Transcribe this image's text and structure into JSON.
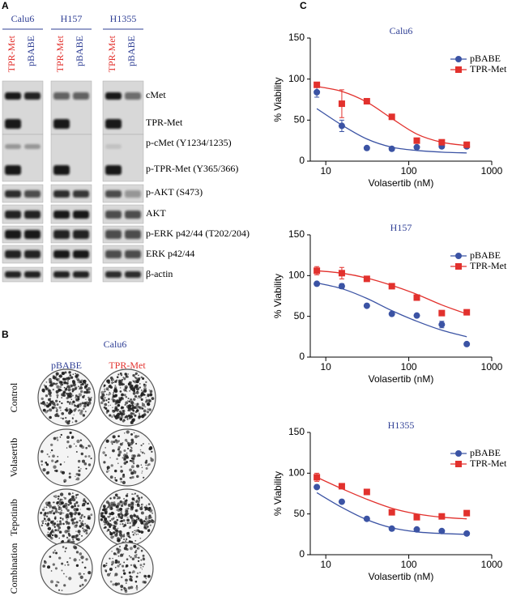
{
  "panels": {
    "a": "A",
    "b": "B",
    "c": "C"
  },
  "blot": {
    "cell_lines": [
      "Calu6",
      "H157",
      "H1355"
    ],
    "lanes": [
      "TPR-Met",
      "pBABE"
    ],
    "rows": [
      "cMet",
      "TPR-Met",
      "p-cMet (Y1234/1235)",
      "p-TPR-Met (Y365/366)",
      "p-AKT (S473)",
      "AKT",
      "p-ERK p42/44 (T202/204)",
      "ERK p42/44",
      "β-actin"
    ]
  },
  "colony": {
    "title": "Calu6",
    "columns": [
      "pBABE",
      "TPR-Met"
    ],
    "rows": [
      "Control",
      "Volasertib",
      "Tepotinib",
      "Combination"
    ]
  },
  "chart_data": [
    {
      "type": "line",
      "title": "Calu6",
      "xlabel": "Volasertib (nM)",
      "ylabel": "% Viability",
      "log_x": true,
      "xlim": [
        6.5,
        1000
      ],
      "xticks": [
        10,
        100,
        1000
      ],
      "ylim": [
        0,
        150
      ],
      "yticks": [
        0,
        50,
        100,
        150
      ],
      "legend": "upper right",
      "x": [
        7.8,
        15.6,
        31.25,
        62.5,
        125,
        250,
        500
      ],
      "series": [
        {
          "name": "pBABE",
          "color": "#3b53a4",
          "marker": "circle",
          "values": [
            84,
            43,
            16,
            15,
            17,
            18,
            18
          ],
          "error": [
            6,
            7,
            null,
            null,
            null,
            null,
            null
          ],
          "fit": [
            64,
            44,
            27,
            17,
            13,
            11,
            10
          ]
        },
        {
          "name": "TPR-Met",
          "color": "#e2312d",
          "marker": "square",
          "values": [
            93,
            70,
            73,
            54,
            25,
            23,
            20
          ],
          "error": [
            null,
            17,
            null,
            null,
            null,
            null,
            null
          ],
          "fit": [
            91,
            85,
            72,
            52,
            33,
            23,
            19
          ]
        }
      ]
    },
    {
      "type": "line",
      "title": "H157",
      "xlabel": "Volasertib (nM)",
      "ylabel": "% Viability",
      "log_x": true,
      "xlim": [
        6.5,
        1000
      ],
      "xticks": [
        10,
        100,
        1000
      ],
      "ylim": [
        0,
        150
      ],
      "yticks": [
        0,
        50,
        100,
        150
      ],
      "legend": "upper right",
      "x": [
        7.8,
        15.6,
        31.25,
        62.5,
        125,
        250,
        500
      ],
      "series": [
        {
          "name": "pBABE",
          "color": "#3b53a4",
          "marker": "circle",
          "values": [
            90,
            87,
            63,
            53,
            51,
            40,
            16
          ],
          "error": [
            null,
            3,
            null,
            null,
            null,
            4,
            null
          ],
          "fit": [
            91,
            84,
            72,
            57,
            44,
            33,
            25
          ]
        },
        {
          "name": "TPR-Met",
          "color": "#e2312d",
          "marker": "square",
          "values": [
            106,
            103,
            96,
            87,
            73,
            54,
            55
          ],
          "error": [
            5,
            7,
            null,
            null,
            null,
            null,
            null
          ],
          "fit": [
            106,
            103,
            97,
            88,
            77,
            64,
            53
          ]
        }
      ]
    },
    {
      "type": "line",
      "title": "H1355",
      "xlabel": "Volasertib (nM)",
      "ylabel": "% Viability",
      "log_x": true,
      "xlim": [
        6.5,
        1000
      ],
      "xticks": [
        10,
        100,
        1000
      ],
      "ylim": [
        0,
        150
      ],
      "yticks": [
        0,
        50,
        100,
        150
      ],
      "legend": "upper right",
      "x": [
        7.8,
        15.6,
        31.25,
        62.5,
        125,
        250,
        500
      ],
      "series": [
        {
          "name": "pBABE",
          "color": "#3b53a4",
          "marker": "circle",
          "values": [
            83,
            65,
            44,
            32,
            31,
            29,
            26
          ],
          "error": [
            null,
            null,
            null,
            null,
            null,
            null,
            null
          ],
          "fit": [
            76,
            58,
            43,
            33,
            28,
            26,
            25
          ]
        },
        {
          "name": "TPR-Met",
          "color": "#e2312d",
          "marker": "square",
          "values": [
            95,
            84,
            77,
            52,
            46,
            47,
            51
          ],
          "error": [
            5,
            null,
            null,
            null,
            null,
            null,
            null
          ],
          "fit": [
            95,
            81,
            68,
            57,
            50,
            46,
            44
          ]
        }
      ]
    }
  ]
}
